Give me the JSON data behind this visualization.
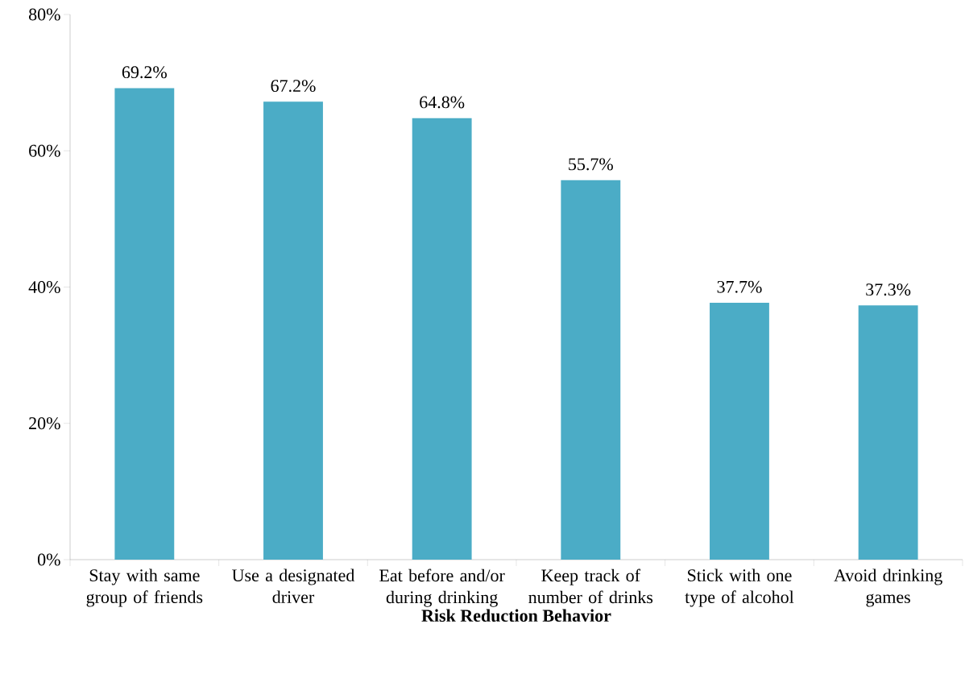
{
  "chart_data": {
    "type": "bar",
    "xlabel": "Risk Reduction Behavior",
    "categories": [
      "Stay with same group of friends",
      "Use a designated driver",
      "Eat before and/or during drinking",
      "Keep track of number of drinks",
      "Stick with one type of alcohol",
      "Avoid drinking games"
    ],
    "values": [
      69.2,
      67.2,
      64.8,
      55.7,
      37.7,
      37.3
    ],
    "value_labels": [
      "69.2%",
      "67.2%",
      "64.8%",
      "55.7%",
      "37.7%",
      "37.3%"
    ],
    "color": "#4bacc6",
    "ylim": [
      0,
      80
    ],
    "yticks": [
      {
        "value": 0,
        "label": "0%"
      },
      {
        "value": 20,
        "label": "20%"
      },
      {
        "value": 40,
        "label": "40%"
      },
      {
        "value": 60,
        "label": "60%"
      },
      {
        "value": 80,
        "label": "80%"
      }
    ],
    "grid": false
  }
}
